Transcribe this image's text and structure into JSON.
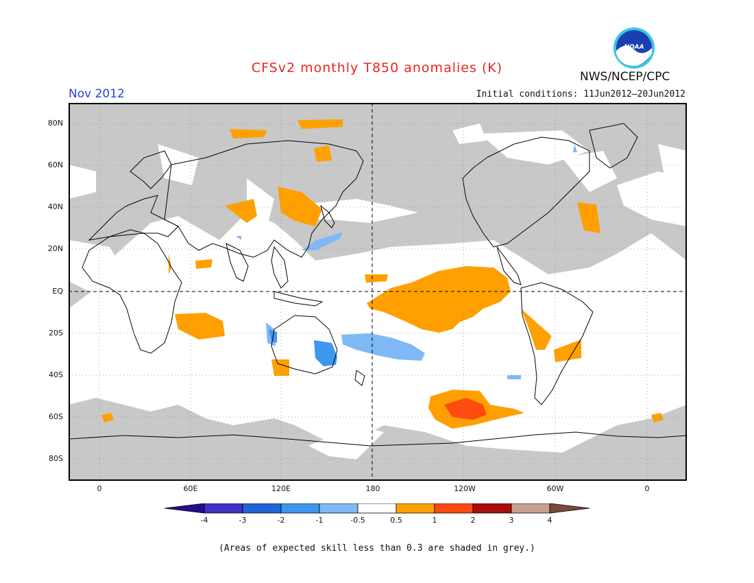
{
  "header": {
    "title": "CFSv2 monthly T850 anomalies (K)",
    "month": "Nov 2012",
    "initial_conditions": "Initial conditions: 11Jun2012–20Jun2012",
    "agency": "NWS/NCEP/CPC",
    "logo_text": "NOAA"
  },
  "map": {
    "latitude_labels": [
      "80N",
      "60N",
      "40N",
      "20N",
      "EQ",
      "20S",
      "40S",
      "60S",
      "80S"
    ],
    "longitude_labels": [
      "0",
      "60E",
      "120E",
      "180",
      "120W",
      "60W",
      "0"
    ],
    "skill_mask_color": "#c8c8c8",
    "coast_color": "#000000"
  },
  "legend": {
    "ticks": [
      "-4",
      "-3",
      "-2",
      "-1",
      "-0.5",
      "0.5",
      "1",
      "2",
      "3",
      "4"
    ],
    "colors": [
      "#2a0c8e",
      "#4030c4",
      "#1f64d6",
      "#3d96ef",
      "#7fb9f5",
      "#ffffff",
      "#ffa000",
      "#ff4a10",
      "#a80c0c",
      "#c8a090",
      "#7a4a38"
    ]
  },
  "footnote": "(Areas of expected skill less than 0.3 are shaded in grey.)"
}
